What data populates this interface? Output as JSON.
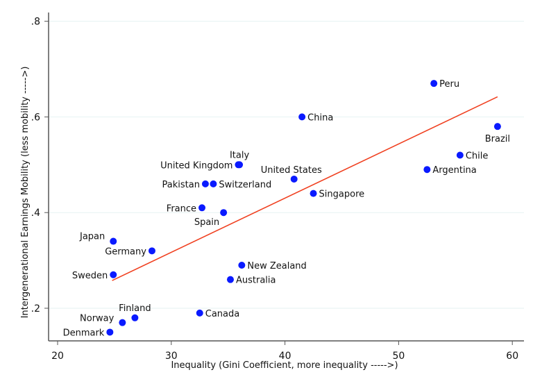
{
  "chart_data": {
    "type": "scatter",
    "title": "",
    "xlabel": "Inequality (Gini Coefficient, more inequality ----->)",
    "ylabel": "Intergenerational Earnings Mobility (less mobility ----->)",
    "xlim": [
      19.2,
      61
    ],
    "ylim": [
      0.132,
      0.82
    ],
    "xticks": [
      20,
      30,
      40,
      50,
      60
    ],
    "xtick_labels": [
      "20",
      "30",
      "40",
      "50",
      "60"
    ],
    "yticks": [
      0.2,
      0.4,
      0.6,
      0.8
    ],
    "ytick_labels": [
      ".2",
      ".4",
      ".6",
      ".8"
    ],
    "grid": "horizontal, faint",
    "legend": "none",
    "marker_color": "#0a1aff",
    "fit_line_color": "#f04020",
    "points": [
      {
        "label": "Denmark",
        "x": 24.6,
        "y": 0.15
      },
      {
        "label": "Norway",
        "x": 25.7,
        "y": 0.17
      },
      {
        "label": "Finland",
        "x": 26.8,
        "y": 0.18
      },
      {
        "label": "Sweden",
        "x": 24.9,
        "y": 0.27
      },
      {
        "label": "Japan",
        "x": 24.9,
        "y": 0.34
      },
      {
        "label": "Germany",
        "x": 28.3,
        "y": 0.32
      },
      {
        "label": "France",
        "x": 32.7,
        "y": 0.41
      },
      {
        "label": "Spain",
        "x": 34.6,
        "y": 0.4
      },
      {
        "label": "Canada",
        "x": 32.5,
        "y": 0.19
      },
      {
        "label": "New Zealand",
        "x": 36.2,
        "y": 0.29
      },
      {
        "label": "Australia",
        "x": 35.2,
        "y": 0.26
      },
      {
        "label": "United Kingdom",
        "x": 35.9,
        "y": 0.5
      },
      {
        "label": "Italy",
        "x": 36.0,
        "y": 0.5
      },
      {
        "label": "Pakistan",
        "x": 33.0,
        "y": 0.46
      },
      {
        "label": "Switzerland",
        "x": 33.7,
        "y": 0.46
      },
      {
        "label": "United States",
        "x": 40.8,
        "y": 0.47
      },
      {
        "label": "China",
        "x": 41.5,
        "y": 0.6
      },
      {
        "label": "Singapore",
        "x": 42.5,
        "y": 0.44
      },
      {
        "label": "Peru",
        "x": 53.1,
        "y": 0.67
      },
      {
        "label": "Brazil",
        "x": 58.7,
        "y": 0.58
      },
      {
        "label": "Chile",
        "x": 55.4,
        "y": 0.52
      },
      {
        "label": "Argentina",
        "x": 52.5,
        "y": 0.49
      }
    ],
    "fit_line": {
      "x": [
        24.8,
        58.7
      ],
      "y": [
        0.258,
        0.642
      ]
    }
  }
}
